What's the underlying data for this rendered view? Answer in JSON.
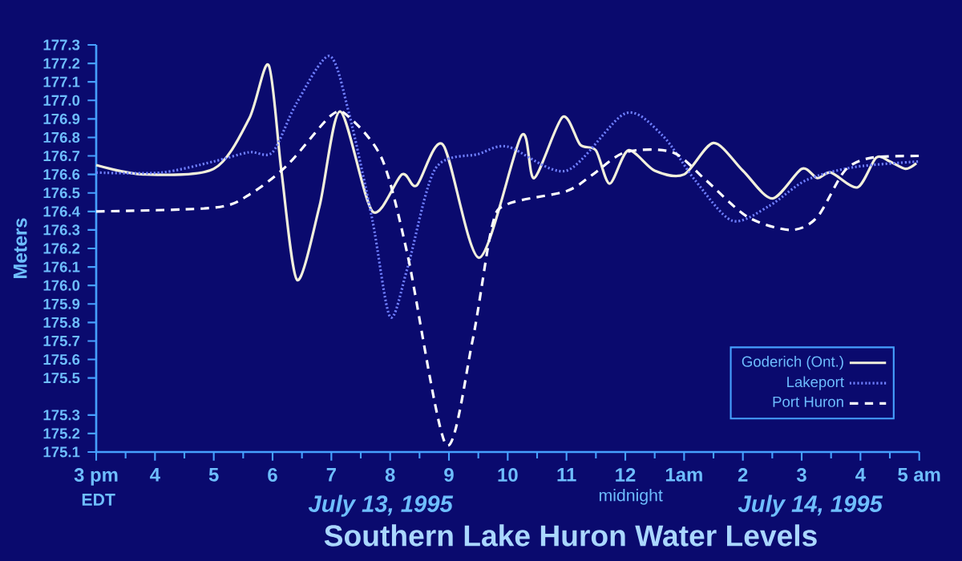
{
  "chart_data": {
    "type": "line",
    "title": "Southern Lake Huron Water Levels",
    "ylabel": "Meters",
    "annotations": [
      "EDT",
      "July 13, 1995",
      "midnight",
      "July 14, 1995"
    ],
    "xlim": [
      "1995-07-13T15:00",
      "1995-07-14T05:00"
    ],
    "xticks": [
      {
        "value": "1995-07-13T15:00",
        "label": "3 pm"
      },
      {
        "value": "1995-07-13T16:00",
        "label": "4"
      },
      {
        "value": "1995-07-13T17:00",
        "label": "5"
      },
      {
        "value": "1995-07-13T18:00",
        "label": "6"
      },
      {
        "value": "1995-07-13T19:00",
        "label": "7"
      },
      {
        "value": "1995-07-13T20:00",
        "label": "8"
      },
      {
        "value": "1995-07-13T21:00",
        "label": "9"
      },
      {
        "value": "1995-07-13T22:00",
        "label": "10"
      },
      {
        "value": "1995-07-13T23:00",
        "label": "11"
      },
      {
        "value": "1995-07-14T00:00",
        "label": "12"
      },
      {
        "value": "1995-07-14T01:00",
        "label": "1am"
      },
      {
        "value": "1995-07-14T02:00",
        "label": "2"
      },
      {
        "value": "1995-07-14T03:00",
        "label": "3"
      },
      {
        "value": "1995-07-14T04:00",
        "label": "4"
      },
      {
        "value": "1995-07-14T05:00",
        "label": "5 am"
      }
    ],
    "ylim": [
      175.1,
      177.3
    ],
    "yticks": [
      177.3,
      177.2,
      177.1,
      {
        "value": 177.0,
        "label": "177.0"
      },
      176.9,
      176.8,
      176.7,
      176.6,
      176.5,
      176.4,
      176.3,
      176.2,
      176.1,
      {
        "value": 176.0,
        "label": "176.0"
      },
      175.9,
      175.8,
      175.7,
      175.6,
      175.5,
      175.3,
      175.2,
      175.1
    ],
    "grid": false,
    "legend": "bottom right",
    "marker": "none",
    "series": [
      {
        "name": "Goderich (Ont.)",
        "color": "#f2f0dc",
        "line_style": "solid",
        "x": [
          "1995-07-13T15:00",
          "1995-07-13T15:48",
          "1995-07-13T17:00",
          "1995-07-13T17:36",
          "1995-07-13T17:56",
          "1995-07-13T18:09",
          "1995-07-13T18:25",
          "1995-07-13T18:48",
          "1995-07-13T19:09",
          "1995-07-13T19:42",
          "1995-07-13T20:12",
          "1995-07-13T20:27",
          "1995-07-13T20:54",
          "1995-07-13T21:31",
          "1995-07-13T22:14",
          "1995-07-13T22:27",
          "1995-07-13T22:56",
          "1995-07-13T23:14",
          "1995-07-13T23:30",
          "1995-07-13T23:44",
          "1995-07-14T00:03",
          "1995-07-14T00:30",
          "1995-07-14T01:00",
          "1995-07-14T01:30",
          "1995-07-14T02:00",
          "1995-07-14T02:30",
          "1995-07-14T03:00",
          "1995-07-14T03:16",
          "1995-07-14T03:30",
          "1995-07-14T03:57",
          "1995-07-14T04:16",
          "1995-07-14T04:30",
          "1995-07-14T04:46",
          "1995-07-14T04:57"
        ],
        "values": [
          176.65,
          176.6,
          176.63,
          176.9,
          177.19,
          176.62,
          176.03,
          176.43,
          176.94,
          176.4,
          176.6,
          176.54,
          176.76,
          176.15,
          176.81,
          176.58,
          176.91,
          176.76,
          176.73,
          176.55,
          176.73,
          176.62,
          176.6,
          176.77,
          176.62,
          176.47,
          176.63,
          176.58,
          176.61,
          176.53,
          176.69,
          176.67,
          176.63,
          176.66
        ]
      },
      {
        "name": "Lakeport",
        "color": "#6f7fff",
        "line_style": "dotted",
        "x": [
          "1995-07-13T15:00",
          "1995-07-13T16:06",
          "1995-07-13T17:00",
          "1995-07-13T17:36",
          "1995-07-13T18:00",
          "1995-07-13T18:24",
          "1995-07-13T18:58",
          "1995-07-13T19:18",
          "1995-07-13T19:42",
          "1995-07-13T20:00",
          "1995-07-13T20:18",
          "1995-07-13T20:46",
          "1995-07-13T21:30",
          "1995-07-13T22:00",
          "1995-07-13T23:00",
          "1995-07-14T00:00",
          "1995-07-14T00:38",
          "1995-07-14T01:11",
          "1995-07-14T01:49",
          "1995-07-14T02:27",
          "1995-07-14T03:05",
          "1995-07-14T03:54",
          "1995-07-14T05:00"
        ],
        "values": [
          176.61,
          176.61,
          176.67,
          176.72,
          176.72,
          176.98,
          177.24,
          176.93,
          176.35,
          175.83,
          176.1,
          176.63,
          176.71,
          176.75,
          176.62,
          176.93,
          176.81,
          176.57,
          176.35,
          176.43,
          176.57,
          176.64,
          176.67
        ]
      },
      {
        "name": "Port Huron",
        "color": "#ffffff",
        "line_style": "dashed",
        "x": [
          "1995-07-13T15:00",
          "1995-07-13T17:00",
          "1995-07-13T17:36",
          "1995-07-13T18:15",
          "1995-07-13T19:00",
          "1995-07-13T19:18",
          "1995-07-13T19:52",
          "1995-07-13T20:18",
          "1995-07-13T20:57",
          "1995-07-13T21:24",
          "1995-07-13T21:44",
          "1995-07-13T22:00",
          "1995-07-13T23:00",
          "1995-07-13T23:27",
          "1995-07-14T00:00",
          "1995-07-14T00:48",
          "1995-07-14T01:22",
          "1995-07-14T02:05",
          "1995-07-14T02:49",
          "1995-07-14T03:16",
          "1995-07-14T03:44",
          "1995-07-14T04:11",
          "1995-07-14T05:00"
        ],
        "values": [
          176.4,
          176.42,
          176.49,
          176.65,
          176.92,
          176.91,
          176.68,
          176.16,
          175.14,
          175.7,
          176.32,
          176.44,
          176.51,
          176.6,
          176.72,
          176.72,
          176.57,
          176.37,
          176.3,
          176.37,
          176.62,
          176.69,
          176.7
        ]
      }
    ]
  }
}
